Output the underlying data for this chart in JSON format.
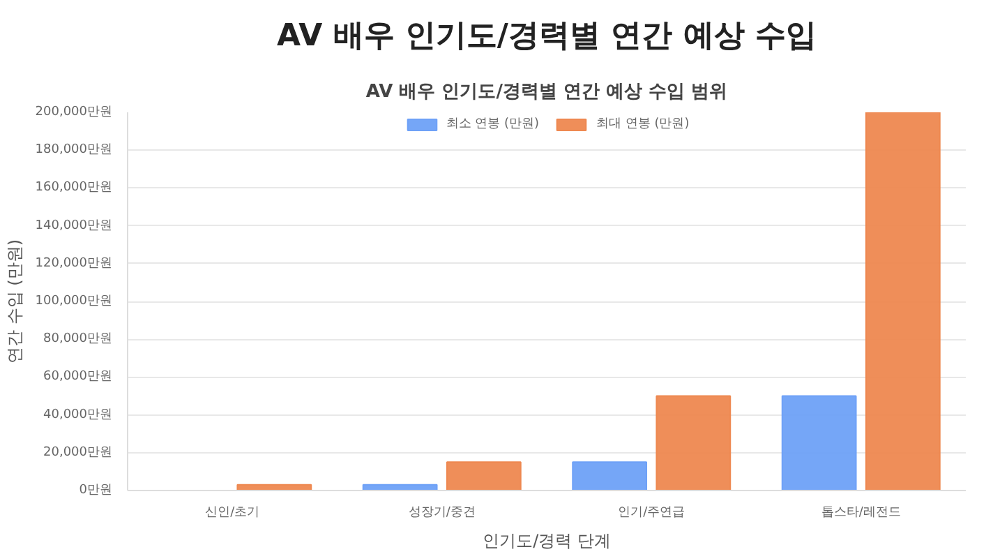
{
  "chart_data": {
    "type": "bar",
    "title": "AV 배우 인기도/경력별 연간 예상 수입",
    "subtitle": "AV 배우 인기도/경력별 연간 예상 수입 범위",
    "xlabel": "인기도/경력 단계",
    "ylabel": "연간 수입 (만원)",
    "categories": [
      "신인/초기",
      "성장기/중견",
      "인기/주연급",
      "톱스타/레전드"
    ],
    "series": [
      {
        "name": "최소 연봉 (만원)",
        "color": "#6ea1f7",
        "values": [
          0,
          3000,
          15000,
          50000
        ]
      },
      {
        "name": "최대 연봉 (만원)",
        "color": "#ee8850",
        "values": [
          3000,
          15000,
          50000,
          200000
        ]
      }
    ],
    "ylim": [
      0,
      200000
    ],
    "yticks": [
      {
        "value": 0,
        "label": "0만원"
      },
      {
        "value": 20000,
        "label": "20,000만원"
      },
      {
        "value": 40000,
        "label": "40,000만원"
      },
      {
        "value": 60000,
        "label": "60,000만원"
      },
      {
        "value": 80000,
        "label": "80,000만원"
      },
      {
        "value": 100000,
        "label": "100,000만원"
      },
      {
        "value": 120000,
        "label": "120,000만원"
      },
      {
        "value": 140000,
        "label": "140,000만원"
      },
      {
        "value": 160000,
        "label": "160,000만원"
      },
      {
        "value": 180000,
        "label": "180,000만원"
      },
      {
        "value": 200000,
        "label": "200,000만원"
      }
    ],
    "grid": "y",
    "legend": "top"
  }
}
